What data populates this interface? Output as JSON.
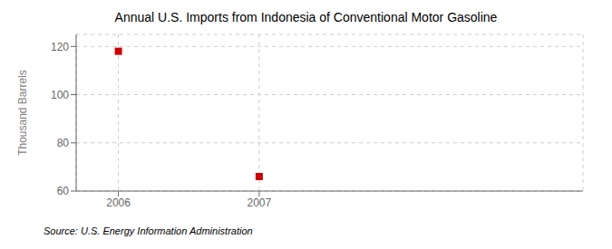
{
  "chart_data": {
    "type": "scatter",
    "title": "Annual U.S. Imports from Indonesia of Conventional Motor Gasoline",
    "ylabel": "Thousand Barrels",
    "annotation": "Source: U.S. Energy Information Administration",
    "x": [
      2006,
      2007
    ],
    "values": [
      118,
      66
    ],
    "xlim": [
      2005.7,
      2009.3
    ],
    "xticks": [
      2006,
      2007
    ],
    "ylim": [
      60,
      125
    ],
    "yticks": [
      60,
      80,
      100,
      120
    ],
    "color": "#cc0000",
    "marker": "square",
    "grid": true
  }
}
